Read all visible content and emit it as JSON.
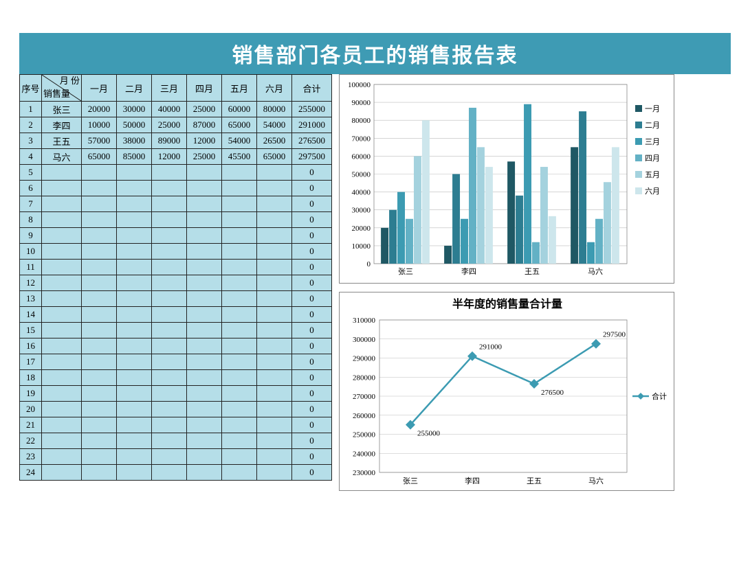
{
  "title": "销售部门各员工的销售报告表",
  "table": {
    "header_diag_top": "月 份",
    "header_diag_bottom": "销售量",
    "header_idx": "序号",
    "months": [
      "一月",
      "二月",
      "三月",
      "四月",
      "五月",
      "六月"
    ],
    "header_sum": "合计",
    "row_count_total": 24,
    "rows": [
      {
        "name": "张三",
        "vals": [
          20000,
          30000,
          40000,
          25000,
          60000,
          80000
        ],
        "sum": 255000
      },
      {
        "name": "李四",
        "vals": [
          10000,
          50000,
          25000,
          87000,
          65000,
          54000
        ],
        "sum": 291000
      },
      {
        "name": "王五",
        "vals": [
          57000,
          38000,
          89000,
          12000,
          54000,
          26500
        ],
        "sum": 276500
      },
      {
        "name": "马六",
        "vals": [
          65000,
          85000,
          12000,
          25000,
          45500,
          65000
        ],
        "sum": 297500
      }
    ],
    "bg_color": "#b5dee8",
    "border_color": "#222222"
  },
  "bar_chart": {
    "type": "bar",
    "categories": [
      "张三",
      "李四",
      "王五",
      "马六"
    ],
    "series": [
      {
        "label": "一月",
        "color": "#1f5864"
      },
      {
        "label": "二月",
        "color": "#2d7d91"
      },
      {
        "label": "三月",
        "color": "#3c9bb2"
      },
      {
        "label": "四月",
        "color": "#63b1c5"
      },
      {
        "label": "五月",
        "color": "#a4d2de"
      },
      {
        "label": "六月",
        "color": "#cde6ec"
      }
    ],
    "ylim": [
      0,
      100000
    ],
    "ytick_step": 10000,
    "plot_bg": "#ffffff",
    "grid_color": "#bbbbbb",
    "label_fontsize": 11
  },
  "line_chart": {
    "type": "line",
    "title": "半年度的销售量合计量",
    "title_fontsize": 16,
    "categories": [
      "张三",
      "李四",
      "王五",
      "马六"
    ],
    "series_label": "合计",
    "values": [
      255000,
      291000,
      276500,
      297500
    ],
    "line_color": "#3c9bb2",
    "marker": "diamond",
    "marker_size": 7,
    "ylim": [
      230000,
      310000
    ],
    "ytick_step": 10000,
    "plot_bg": "#ffffff",
    "grid_color": "#bbbbbb",
    "label_fontsize": 11
  }
}
